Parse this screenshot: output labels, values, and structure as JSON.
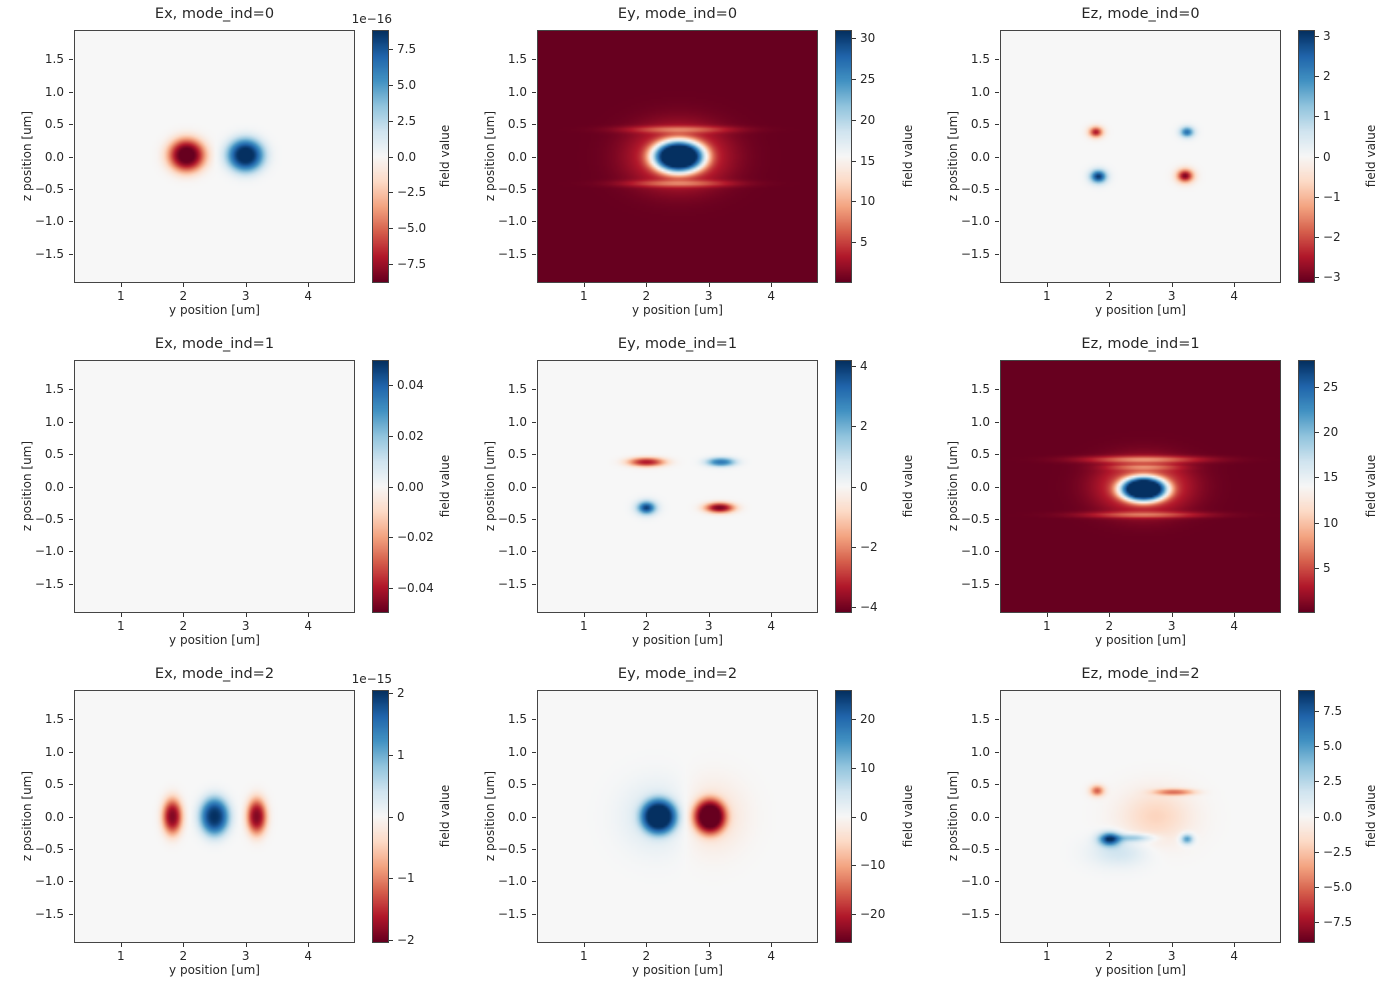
{
  "figure": {
    "background_color": "#ffffff",
    "text_color": "#262626",
    "axes_frame_color": "#454545",
    "colormap": "RdBu",
    "colormap_stops": [
      [
        103,
        0,
        31
      ],
      [
        178,
        24,
        43
      ],
      [
        214,
        96,
        77
      ],
      [
        244,
        165,
        130
      ],
      [
        253,
        219,
        199
      ],
      [
        247,
        247,
        247
      ],
      [
        209,
        229,
        240
      ],
      [
        146,
        197,
        222
      ],
      [
        67,
        147,
        195
      ],
      [
        33,
        102,
        172
      ],
      [
        5,
        48,
        97
      ]
    ],
    "x_range": [
      0.25,
      4.75
    ],
    "y_range": [
      -1.95,
      1.95
    ],
    "x_ticks": [
      1,
      2,
      3,
      4
    ],
    "x_tick_labels": [
      "1",
      "2",
      "3",
      "4"
    ],
    "y_ticks": [
      1.5,
      1.0,
      0.5,
      0.0,
      -0.5,
      -1.0,
      -1.5
    ],
    "y_tick_labels": [
      "1.5",
      "1.0",
      "0.5",
      "0.0",
      "−0.5",
      "−1.0",
      "−1.5"
    ]
  },
  "chart_data": [
    {
      "type": "heatmap",
      "title": "Ex, mode_ind=0",
      "xlabel": "y position [um]",
      "ylabel": "z position [um]",
      "colorbar_label": "field value",
      "scale_label": "1e−16",
      "vmin": -8.8,
      "vmax": 8.8,
      "colorbar_ticks": [
        7.5,
        5.0,
        2.5,
        0.0,
        -2.5,
        -5.0,
        -7.5
      ],
      "colorbar_tick_labels": [
        "7.5",
        "5.0",
        "2.5",
        "0.0",
        "−2.5",
        "−5.0",
        "−7.5"
      ],
      "background_value": 0,
      "lobes": [
        {
          "y": 2.05,
          "z": 0.02,
          "sy": 0.3,
          "sz": 0.26,
          "p": 1.4,
          "amp": -9.5
        },
        {
          "y": 3.0,
          "z": 0.02,
          "sy": 0.3,
          "sz": 0.26,
          "p": 1.4,
          "amp": 9.5
        }
      ]
    },
    {
      "type": "heatmap",
      "title": "Ey, mode_ind=0",
      "xlabel": "y position [um]",
      "ylabel": "z position [um]",
      "colorbar_label": "field value",
      "vmin": 0,
      "vmax": 31,
      "colorbar_ticks": [
        30,
        25,
        20,
        15,
        10,
        5
      ],
      "colorbar_tick_labels": [
        "30",
        "25",
        "20",
        "15",
        "10",
        "5"
      ],
      "background_value": 0,
      "lobes": [
        {
          "y": 2.52,
          "z": 0.0,
          "sy": 0.44,
          "sz": 0.26,
          "p": 1.8,
          "amp": 31
        },
        {
          "y": 2.52,
          "z": 0.0,
          "sy": 0.8,
          "sz": 0.5,
          "p": 1.2,
          "amp": 6
        },
        {
          "y": 2.52,
          "z": 0.42,
          "sy": 0.85,
          "sz": 0.05,
          "p": 1,
          "amp": 5
        },
        {
          "y": 2.52,
          "z": -0.42,
          "sy": 0.85,
          "sz": 0.05,
          "p": 1,
          "amp": 5
        }
      ]
    },
    {
      "type": "heatmap",
      "title": "Ez, mode_ind=0",
      "xlabel": "y position [um]",
      "ylabel": "z position [um]",
      "colorbar_label": "field value",
      "vmin": -3.15,
      "vmax": 3.15,
      "colorbar_ticks": [
        3,
        2,
        1,
        0,
        -1,
        -2,
        -3
      ],
      "colorbar_tick_labels": [
        "3",
        "2",
        "1",
        "0",
        "−1",
        "−2",
        "−3"
      ],
      "background_value": 0,
      "lobes": [
        {
          "y": 1.78,
          "z": 0.38,
          "sy": 0.11,
          "sz": 0.08,
          "p": 1,
          "amp": -2.6
        },
        {
          "y": 3.25,
          "z": 0.38,
          "sy": 0.11,
          "sz": 0.08,
          "p": 1,
          "amp": 2.4
        },
        {
          "y": 1.82,
          "z": -0.31,
          "sy": 0.13,
          "sz": 0.1,
          "p": 1,
          "amp": 3.1
        },
        {
          "y": 3.22,
          "z": -0.3,
          "sy": 0.13,
          "sz": 0.1,
          "p": 1,
          "amp": -3.0
        }
      ]
    },
    {
      "type": "heatmap",
      "title": "Ex, mode_ind=1",
      "xlabel": "y position [um]",
      "ylabel": "z position [um]",
      "colorbar_label": "field value",
      "vmin": -0.05,
      "vmax": 0.05,
      "colorbar_ticks": [
        0.04,
        0.02,
        0.0,
        -0.02,
        -0.04
      ],
      "colorbar_tick_labels": [
        "0.04",
        "0.02",
        "0.00",
        "−0.02",
        "−0.04"
      ],
      "background_value": 0,
      "lobes": []
    },
    {
      "type": "heatmap",
      "title": "Ey, mode_ind=1",
      "xlabel": "y position [um]",
      "ylabel": "z position [um]",
      "colorbar_label": "field value",
      "vmin": -4.2,
      "vmax": 4.2,
      "colorbar_ticks": [
        4,
        2,
        0,
        -2,
        -4
      ],
      "colorbar_tick_labels": [
        "4",
        "2",
        "0",
        "−2",
        "−4"
      ],
      "background_value": 0,
      "lobes": [
        {
          "y": 2.0,
          "z": 0.38,
          "sy": 0.3,
          "sz": 0.07,
          "p": 1.2,
          "amp": -3.4
        },
        {
          "y": 3.2,
          "z": 0.38,
          "sy": 0.24,
          "sz": 0.07,
          "p": 1.2,
          "amp": 3.0
        },
        {
          "y": 2.0,
          "z": -0.33,
          "sy": 0.15,
          "sz": 0.1,
          "p": 1,
          "amp": 4.0
        },
        {
          "y": 3.18,
          "z": -0.33,
          "sy": 0.24,
          "sz": 0.08,
          "p": 1.2,
          "amp": -4.0
        }
      ]
    },
    {
      "type": "heatmap",
      "title": "Ez, mode_ind=1",
      "xlabel": "y position [um]",
      "ylabel": "z position [um]",
      "colorbar_label": "field value",
      "vmin": 0,
      "vmax": 28,
      "colorbar_ticks": [
        25,
        20,
        15,
        10,
        5
      ],
      "colorbar_tick_labels": [
        "25",
        "20",
        "15",
        "10",
        "5"
      ],
      "background_value": 0,
      "lobes": [
        {
          "y": 2.55,
          "z": -0.04,
          "sy": 0.4,
          "sz": 0.2,
          "p": 1.8,
          "amp": 28
        },
        {
          "y": 2.55,
          "z": 0.0,
          "sy": 0.75,
          "sz": 0.42,
          "p": 1.2,
          "amp": 6
        },
        {
          "y": 2.55,
          "z": 0.42,
          "sy": 0.95,
          "sz": 0.05,
          "p": 1,
          "amp": 6
        },
        {
          "y": 2.55,
          "z": 0.3,
          "sy": 0.55,
          "sz": 0.04,
          "p": 1,
          "amp": 4
        },
        {
          "y": 2.55,
          "z": -0.44,
          "sy": 0.95,
          "sz": 0.045,
          "p": 1,
          "amp": 5
        }
      ]
    },
    {
      "type": "heatmap",
      "title": "Ex, mode_ind=2",
      "xlabel": "y position [um]",
      "ylabel": "z position [um]",
      "colorbar_label": "field value",
      "scale_label": "1e−15",
      "vmin": -2.05,
      "vmax": 2.05,
      "colorbar_ticks": [
        2,
        1,
        0,
        -1,
        -2
      ],
      "colorbar_tick_labels": [
        "2",
        "1",
        "0",
        "−1",
        "−2"
      ],
      "background_value": 0,
      "lobes": [
        {
          "y": 1.82,
          "z": 0.0,
          "sy": 0.16,
          "sz": 0.28,
          "p": 1.3,
          "amp": -1.9
        },
        {
          "y": 2.5,
          "z": 0.0,
          "sy": 0.24,
          "sz": 0.3,
          "p": 1.4,
          "amp": 2.05
        },
        {
          "y": 3.18,
          "z": 0.0,
          "sy": 0.16,
          "sz": 0.28,
          "p": 1.3,
          "amp": -1.9
        }
      ]
    },
    {
      "type": "heatmap",
      "title": "Ey, mode_ind=2",
      "xlabel": "y position [um]",
      "ylabel": "z position [um]",
      "colorbar_label": "field value",
      "vmin": -26,
      "vmax": 26,
      "colorbar_ticks": [
        20,
        10,
        0,
        -10,
        -20
      ],
      "colorbar_tick_labels": [
        "20",
        "10",
        "0",
        "−10",
        "−20"
      ],
      "background_value": 0,
      "lobes": [
        {
          "y": 2.2,
          "z": 0.0,
          "sy": 0.3,
          "sz": 0.28,
          "p": 1.7,
          "amp": 26
        },
        {
          "y": 3.02,
          "z": 0.0,
          "sy": 0.27,
          "sz": 0.28,
          "p": 1.7,
          "amp": -26
        },
        {
          "y": 2.2,
          "z": 0.0,
          "sy": 0.55,
          "sz": 0.5,
          "p": 1,
          "amp": 5
        },
        {
          "y": 3.02,
          "z": 0.0,
          "sy": 0.5,
          "sz": 0.5,
          "p": 1,
          "amp": -5
        }
      ]
    },
    {
      "type": "heatmap",
      "title": "Ez, mode_ind=2",
      "xlabel": "y position [um]",
      "ylabel": "z position [um]",
      "colorbar_label": "field value",
      "vmin": -9,
      "vmax": 9,
      "colorbar_ticks": [
        7.5,
        5.0,
        2.5,
        0.0,
        -2.5,
        -5.0,
        -7.5
      ],
      "colorbar_tick_labels": [
        "7.5",
        "5.0",
        "2.5",
        "0.0",
        "−2.5",
        "−5.0",
        "−7.5"
      ],
      "background_value": 0,
      "lobes": [
        {
          "y": 1.8,
          "z": 0.4,
          "sy": 0.11,
          "sz": 0.08,
          "p": 1,
          "amp": -5.5
        },
        {
          "y": 3.05,
          "z": 0.38,
          "sy": 0.33,
          "sz": 0.05,
          "p": 1.2,
          "amp": -4.5
        },
        {
          "y": 2.0,
          "z": -0.35,
          "sy": 0.17,
          "sz": 0.1,
          "p": 1,
          "amp": 8.5
        },
        {
          "y": 2.4,
          "z": -0.33,
          "sy": 0.3,
          "sz": 0.06,
          "p": 1,
          "amp": 3.5
        },
        {
          "y": 3.25,
          "z": -0.35,
          "sy": 0.1,
          "sz": 0.08,
          "p": 1,
          "amp": 5.5
        },
        {
          "y": 2.75,
          "z": 0.0,
          "sy": 0.55,
          "sz": 0.4,
          "p": 1,
          "amp": -2.0
        },
        {
          "y": 2.15,
          "z": -0.55,
          "sy": 0.45,
          "sz": 0.22,
          "p": 1,
          "amp": 1.8
        }
      ]
    }
  ]
}
